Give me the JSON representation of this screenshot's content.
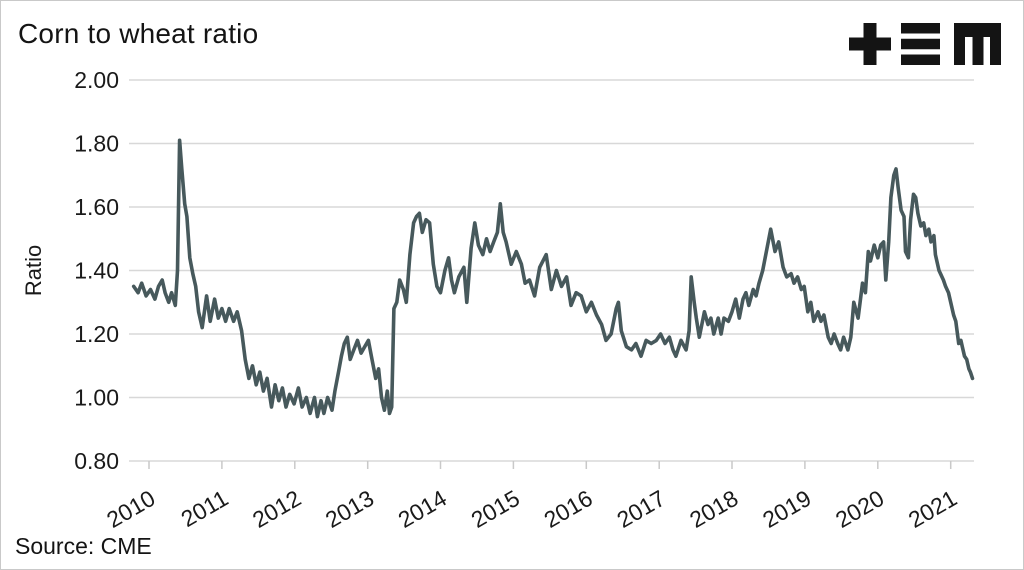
{
  "header": {
    "title": "Corn to wheat ratio"
  },
  "footer": {
    "source": "Source: CME"
  },
  "colors": {
    "line": "#47595c",
    "grid": "#d8d8d8",
    "tick": "#c9c9c9",
    "text": "#1a1a1a",
    "logo": "#141414"
  },
  "chart_data": {
    "type": "line",
    "title": "Corn to wheat ratio",
    "xlabel": "",
    "ylabel": "Ratio",
    "source": "Source: CME",
    "legend": "none",
    "grid": "horizontal",
    "xlim": [
      2009.78,
      2021.32
    ],
    "ylim": [
      0.8,
      2.0
    ],
    "x_ticks": [
      2010,
      2011,
      2012,
      2013,
      2014,
      2015,
      2016,
      2017,
      2018,
      2019,
      2020,
      2021
    ],
    "y_ticks": [
      2.0,
      1.8,
      1.6,
      1.4,
      1.2,
      1.0,
      0.8
    ],
    "line_color": "#47595c",
    "grid_color": "#d8d8d8",
    "series": [
      {
        "name": "Corn to wheat ratio",
        "points": [
          [
            2009.79,
            1.35
          ],
          [
            2009.85,
            1.33
          ],
          [
            2009.9,
            1.36
          ],
          [
            2009.96,
            1.32
          ],
          [
            2010.02,
            1.34
          ],
          [
            2010.08,
            1.31
          ],
          [
            2010.13,
            1.35
          ],
          [
            2010.18,
            1.37
          ],
          [
            2010.22,
            1.33
          ],
          [
            2010.27,
            1.3
          ],
          [
            2010.31,
            1.33
          ],
          [
            2010.36,
            1.29
          ],
          [
            2010.39,
            1.4
          ],
          [
            2010.42,
            1.81
          ],
          [
            2010.45,
            1.72
          ],
          [
            2010.49,
            1.61
          ],
          [
            2010.52,
            1.57
          ],
          [
            2010.56,
            1.44
          ],
          [
            2010.6,
            1.39
          ],
          [
            2010.64,
            1.35
          ],
          [
            2010.68,
            1.27
          ],
          [
            2010.73,
            1.22
          ],
          [
            2010.79,
            1.32
          ],
          [
            2010.84,
            1.24
          ],
          [
            2010.9,
            1.31
          ],
          [
            2010.95,
            1.25
          ],
          [
            2011.0,
            1.28
          ],
          [
            2011.05,
            1.24
          ],
          [
            2011.1,
            1.28
          ],
          [
            2011.16,
            1.24
          ],
          [
            2011.21,
            1.27
          ],
          [
            2011.27,
            1.21
          ],
          [
            2011.32,
            1.12
          ],
          [
            2011.37,
            1.06
          ],
          [
            2011.42,
            1.1
          ],
          [
            2011.47,
            1.04
          ],
          [
            2011.52,
            1.08
          ],
          [
            2011.57,
            1.02
          ],
          [
            2011.62,
            1.06
          ],
          [
            2011.68,
            0.97
          ],
          [
            2011.73,
            1.04
          ],
          [
            2011.78,
            0.99
          ],
          [
            2011.83,
            1.03
          ],
          [
            2011.88,
            0.97
          ],
          [
            2011.93,
            1.01
          ],
          [
            2011.99,
            0.98
          ],
          [
            2012.05,
            1.03
          ],
          [
            2012.1,
            0.97
          ],
          [
            2012.16,
            1.0
          ],
          [
            2012.21,
            0.95
          ],
          [
            2012.27,
            1.0
          ],
          [
            2012.31,
            0.94
          ],
          [
            2012.36,
            0.99
          ],
          [
            2012.4,
            0.95
          ],
          [
            2012.45,
            1.0
          ],
          [
            2012.51,
            0.96
          ],
          [
            2012.55,
            1.02
          ],
          [
            2012.6,
            1.08
          ],
          [
            2012.64,
            1.13
          ],
          [
            2012.68,
            1.17
          ],
          [
            2012.72,
            1.19
          ],
          [
            2012.76,
            1.12
          ],
          [
            2012.81,
            1.15
          ],
          [
            2012.86,
            1.18
          ],
          [
            2012.91,
            1.14
          ],
          [
            2012.96,
            1.16
          ],
          [
            2013.01,
            1.18
          ],
          [
            2013.06,
            1.12
          ],
          [
            2013.11,
            1.06
          ],
          [
            2013.15,
            1.09
          ],
          [
            2013.19,
            1.0
          ],
          [
            2013.23,
            0.96
          ],
          [
            2013.27,
            1.02
          ],
          [
            2013.3,
            0.95
          ],
          [
            2013.33,
            0.97
          ],
          [
            2013.36,
            1.28
          ],
          [
            2013.4,
            1.3
          ],
          [
            2013.44,
            1.37
          ],
          [
            2013.49,
            1.34
          ],
          [
            2013.53,
            1.3
          ],
          [
            2013.58,
            1.45
          ],
          [
            2013.63,
            1.55
          ],
          [
            2013.67,
            1.57
          ],
          [
            2013.71,
            1.58
          ],
          [
            2013.75,
            1.52
          ],
          [
            2013.8,
            1.56
          ],
          [
            2013.85,
            1.55
          ],
          [
            2013.9,
            1.42
          ],
          [
            2013.95,
            1.35
          ],
          [
            2014.0,
            1.33
          ],
          [
            2014.06,
            1.4
          ],
          [
            2014.11,
            1.44
          ],
          [
            2014.15,
            1.37
          ],
          [
            2014.19,
            1.33
          ],
          [
            2014.25,
            1.38
          ],
          [
            2014.32,
            1.41
          ],
          [
            2014.36,
            1.3
          ],
          [
            2014.42,
            1.47
          ],
          [
            2014.47,
            1.55
          ],
          [
            2014.52,
            1.48
          ],
          [
            2014.58,
            1.45
          ],
          [
            2014.63,
            1.5
          ],
          [
            2014.68,
            1.46
          ],
          [
            2014.73,
            1.49
          ],
          [
            2014.78,
            1.52
          ],
          [
            2014.82,
            1.61
          ],
          [
            2014.86,
            1.52
          ],
          [
            2014.9,
            1.49
          ],
          [
            2014.97,
            1.42
          ],
          [
            2015.04,
            1.46
          ],
          [
            2015.11,
            1.42
          ],
          [
            2015.16,
            1.36
          ],
          [
            2015.22,
            1.37
          ],
          [
            2015.29,
            1.32
          ],
          [
            2015.36,
            1.41
          ],
          [
            2015.45,
            1.45
          ],
          [
            2015.52,
            1.34
          ],
          [
            2015.59,
            1.4
          ],
          [
            2015.66,
            1.35
          ],
          [
            2015.73,
            1.38
          ],
          [
            2015.79,
            1.29
          ],
          [
            2015.86,
            1.33
          ],
          [
            2015.93,
            1.32
          ],
          [
            2016.0,
            1.27
          ],
          [
            2016.07,
            1.3
          ],
          [
            2016.14,
            1.26
          ],
          [
            2016.21,
            1.23
          ],
          [
            2016.27,
            1.18
          ],
          [
            2016.34,
            1.2
          ],
          [
            2016.41,
            1.28
          ],
          [
            2016.44,
            1.3
          ],
          [
            2016.48,
            1.21
          ],
          [
            2016.55,
            1.16
          ],
          [
            2016.62,
            1.15
          ],
          [
            2016.68,
            1.17
          ],
          [
            2016.75,
            1.13
          ],
          [
            2016.82,
            1.18
          ],
          [
            2016.89,
            1.17
          ],
          [
            2016.96,
            1.18
          ],
          [
            2017.02,
            1.2
          ],
          [
            2017.08,
            1.17
          ],
          [
            2017.14,
            1.19
          ],
          [
            2017.19,
            1.15
          ],
          [
            2017.23,
            1.13
          ],
          [
            2017.3,
            1.18
          ],
          [
            2017.37,
            1.15
          ],
          [
            2017.41,
            1.21
          ],
          [
            2017.44,
            1.38
          ],
          [
            2017.48,
            1.3
          ],
          [
            2017.51,
            1.25
          ],
          [
            2017.55,
            1.19
          ],
          [
            2017.62,
            1.27
          ],
          [
            2017.67,
            1.23
          ],
          [
            2017.71,
            1.25
          ],
          [
            2017.75,
            1.2
          ],
          [
            2017.81,
            1.25
          ],
          [
            2017.85,
            1.2
          ],
          [
            2017.89,
            1.25
          ],
          [
            2017.95,
            1.24
          ],
          [
            2018.0,
            1.27
          ],
          [
            2018.05,
            1.31
          ],
          [
            2018.1,
            1.25
          ],
          [
            2018.15,
            1.31
          ],
          [
            2018.19,
            1.33
          ],
          [
            2018.23,
            1.29
          ],
          [
            2018.29,
            1.34
          ],
          [
            2018.33,
            1.32
          ],
          [
            2018.37,
            1.36
          ],
          [
            2018.42,
            1.4
          ],
          [
            2018.48,
            1.47
          ],
          [
            2018.53,
            1.53
          ],
          [
            2018.59,
            1.46
          ],
          [
            2018.64,
            1.49
          ],
          [
            2018.7,
            1.41
          ],
          [
            2018.75,
            1.38
          ],
          [
            2018.81,
            1.39
          ],
          [
            2018.85,
            1.36
          ],
          [
            2018.9,
            1.38
          ],
          [
            2018.95,
            1.34
          ],
          [
            2018.99,
            1.35
          ],
          [
            2019.04,
            1.27
          ],
          [
            2019.08,
            1.3
          ],
          [
            2019.12,
            1.24
          ],
          [
            2019.18,
            1.27
          ],
          [
            2019.22,
            1.24
          ],
          [
            2019.26,
            1.26
          ],
          [
            2019.32,
            1.19
          ],
          [
            2019.36,
            1.17
          ],
          [
            2019.4,
            1.2
          ],
          [
            2019.45,
            1.17
          ],
          [
            2019.49,
            1.15
          ],
          [
            2019.53,
            1.19
          ],
          [
            2019.59,
            1.15
          ],
          [
            2019.63,
            1.19
          ],
          [
            2019.67,
            1.3
          ],
          [
            2019.73,
            1.25
          ],
          [
            2019.79,
            1.36
          ],
          [
            2019.83,
            1.33
          ],
          [
            2019.87,
            1.46
          ],
          [
            2019.9,
            1.43
          ],
          [
            2019.95,
            1.48
          ],
          [
            2020.0,
            1.44
          ],
          [
            2020.04,
            1.48
          ],
          [
            2020.08,
            1.49
          ],
          [
            2020.11,
            1.37
          ],
          [
            2020.15,
            1.49
          ],
          [
            2020.18,
            1.63
          ],
          [
            2020.22,
            1.7
          ],
          [
            2020.25,
            1.72
          ],
          [
            2020.28,
            1.66
          ],
          [
            2020.32,
            1.59
          ],
          [
            2020.36,
            1.57
          ],
          [
            2020.38,
            1.46
          ],
          [
            2020.42,
            1.44
          ],
          [
            2020.45,
            1.56
          ],
          [
            2020.49,
            1.64
          ],
          [
            2020.52,
            1.63
          ],
          [
            2020.55,
            1.58
          ],
          [
            2020.59,
            1.54
          ],
          [
            2020.63,
            1.55
          ],
          [
            2020.66,
            1.51
          ],
          [
            2020.7,
            1.53
          ],
          [
            2020.73,
            1.49
          ],
          [
            2020.77,
            1.51
          ],
          [
            2020.79,
            1.45
          ],
          [
            2020.84,
            1.4
          ],
          [
            2020.86,
            1.39
          ],
          [
            2020.9,
            1.37
          ],
          [
            2020.93,
            1.35
          ],
          [
            2020.97,
            1.33
          ],
          [
            2021.0,
            1.3
          ],
          [
            2021.04,
            1.26
          ],
          [
            2021.07,
            1.24
          ],
          [
            2021.11,
            1.17
          ],
          [
            2021.14,
            1.18
          ],
          [
            2021.16,
            1.16
          ],
          [
            2021.19,
            1.13
          ],
          [
            2021.22,
            1.12
          ],
          [
            2021.25,
            1.09
          ],
          [
            2021.27,
            1.08
          ],
          [
            2021.3,
            1.06
          ]
        ]
      }
    ]
  }
}
